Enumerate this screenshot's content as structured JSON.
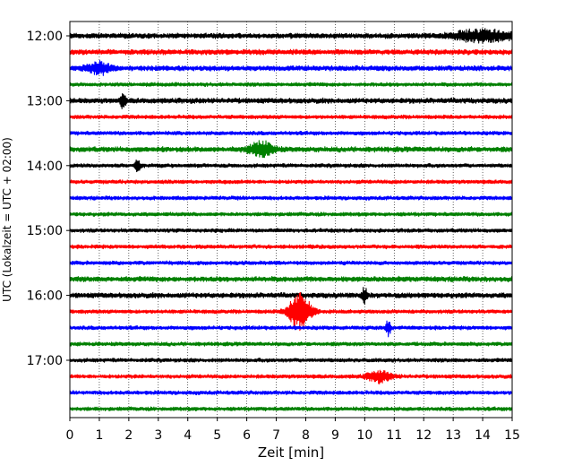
{
  "chart_data": {
    "type": "line",
    "title": "",
    "xlabel": "Zeit  [min]",
    "ylabel": "UTC (Lokalzeit = UTC + 02:00)",
    "xlim": [
      0,
      15
    ],
    "x_ticks": [
      "0",
      "1",
      "2",
      "3",
      "4",
      "5",
      "6",
      "7",
      "8",
      "9",
      "10",
      "11",
      "12",
      "13",
      "14",
      "15"
    ],
    "y_tick_labels": [
      "12:00",
      "13:00",
      "14:00",
      "15:00",
      "16:00",
      "17:00"
    ],
    "trace_interval_minutes": 15,
    "grid": "vertical dotted lines at each minute",
    "colors": [
      "#000000",
      "#ff0000",
      "#0000ff",
      "#008000"
    ],
    "traces": [
      {
        "start": "12:00",
        "color": "#000000",
        "amplitude": "moderate, strong burst 13-15 min"
      },
      {
        "start": "12:15",
        "color": "#ff0000",
        "amplitude": "moderate"
      },
      {
        "start": "12:30",
        "color": "#0000ff",
        "amplitude": "moderate, burst near 1 min"
      },
      {
        "start": "12:45",
        "color": "#008000",
        "amplitude": "low"
      },
      {
        "start": "13:00",
        "color": "#000000",
        "amplitude": "moderate, spike near 1.8 min"
      },
      {
        "start": "13:15",
        "color": "#ff0000",
        "amplitude": "low"
      },
      {
        "start": "13:30",
        "color": "#0000ff",
        "amplitude": "low"
      },
      {
        "start": "13:45",
        "color": "#008000",
        "amplitude": "moderate, event near 6.5 min"
      },
      {
        "start": "14:00",
        "color": "#000000",
        "amplitude": "low, spike near 2.3 min"
      },
      {
        "start": "14:15",
        "color": "#ff0000",
        "amplitude": "low"
      },
      {
        "start": "14:30",
        "color": "#0000ff",
        "amplitude": "low"
      },
      {
        "start": "14:45",
        "color": "#008000",
        "amplitude": "low"
      },
      {
        "start": "15:00",
        "color": "#000000",
        "amplitude": "low"
      },
      {
        "start": "15:15",
        "color": "#ff0000",
        "amplitude": "low"
      },
      {
        "start": "15:30",
        "color": "#0000ff",
        "amplitude": "low"
      },
      {
        "start": "15:45",
        "color": "#008000",
        "amplitude": "moderate"
      },
      {
        "start": "16:00",
        "color": "#000000",
        "amplitude": "moderate, spike near 10 min"
      },
      {
        "start": "16:15",
        "color": "#ff0000",
        "amplitude": "low, large event near 7.8 min"
      },
      {
        "start": "16:30",
        "color": "#0000ff",
        "amplitude": "low, spike near 10.8 min"
      },
      {
        "start": "16:45",
        "color": "#008000",
        "amplitude": "low"
      },
      {
        "start": "17:00",
        "color": "#000000",
        "amplitude": "low"
      },
      {
        "start": "17:15",
        "color": "#ff0000",
        "amplitude": "low, burst near 10.5 min"
      },
      {
        "start": "17:30",
        "color": "#0000ff",
        "amplitude": "low"
      },
      {
        "start": "17:45",
        "color": "#008000",
        "amplitude": "low"
      }
    ]
  }
}
